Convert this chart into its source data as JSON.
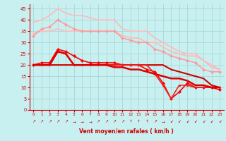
{
  "xlabel": "Vent moyen/en rafales ( km/h )",
  "bg_color": "#c8f0f0",
  "grid_color": "#a8d8d8",
  "xlim": [
    -0.5,
    23.5
  ],
  "ylim": [
    0,
    47
  ],
  "yticks": [
    0,
    5,
    10,
    15,
    20,
    25,
    30,
    35,
    40,
    45
  ],
  "xticks": [
    0,
    1,
    2,
    3,
    4,
    5,
    6,
    7,
    8,
    9,
    10,
    11,
    12,
    13,
    14,
    15,
    16,
    17,
    18,
    19,
    20,
    21,
    22,
    23
  ],
  "lines": [
    {
      "x": [
        0,
        1,
        2,
        3,
        4,
        5,
        6,
        7,
        8,
        9,
        10,
        11,
        12,
        13,
        14,
        15,
        16,
        17,
        18,
        19,
        20,
        21,
        22,
        23
      ],
      "y": [
        34,
        35,
        35,
        36,
        35,
        35,
        35,
        35,
        35,
        35,
        35,
        33,
        32,
        32,
        30,
        30,
        28,
        26,
        25,
        24,
        24,
        22,
        19,
        18
      ],
      "color": "#ffbbbb",
      "lw": 1.3,
      "marker": null
    },
    {
      "x": [
        0,
        1,
        2,
        3,
        4,
        5,
        6,
        7,
        8,
        9,
        10,
        11,
        12,
        13,
        14,
        15,
        16,
        17,
        18,
        19,
        20,
        21,
        22,
        23
      ],
      "y": [
        39,
        40,
        42,
        45,
        43,
        42,
        42,
        41,
        40,
        40,
        40,
        36,
        35,
        35,
        35,
        32,
        30,
        28,
        26,
        25,
        25,
        22,
        20,
        18
      ],
      "color": "#ffbbbb",
      "lw": 1.3,
      "marker": null
    },
    {
      "x": [
        0,
        1,
        2,
        3,
        4,
        5,
        6,
        7,
        8,
        9,
        10,
        11,
        12,
        13,
        14,
        15,
        16,
        17,
        18,
        19,
        20,
        21,
        22,
        23
      ],
      "y": [
        33,
        36,
        37,
        40,
        38,
        36,
        35,
        35,
        35,
        35,
        35,
        32,
        31,
        30,
        30,
        27,
        26,
        24,
        23,
        22,
        21,
        18,
        17,
        17
      ],
      "color": "#ff9999",
      "lw": 1.1,
      "marker": "D",
      "ms": 2.0,
      "has_marker": true
    },
    {
      "x": [
        0,
        1,
        2,
        3,
        4,
        5,
        6,
        7,
        8,
        9,
        10,
        11,
        12,
        13,
        14,
        15,
        16,
        17,
        18,
        19,
        20,
        21,
        22,
        23
      ],
      "y": [
        20,
        20,
        20,
        20,
        20,
        20,
        20,
        20,
        20,
        20,
        20,
        20,
        20,
        20,
        20,
        20,
        20,
        18,
        17,
        16,
        15,
        14,
        11,
        10
      ],
      "color": "#cc0000",
      "lw": 1.5,
      "marker": null,
      "has_marker": false
    },
    {
      "x": [
        0,
        1,
        2,
        3,
        4,
        5,
        6,
        7,
        8,
        9,
        10,
        11,
        12,
        13,
        14,
        15,
        16,
        17,
        18,
        19,
        20,
        21,
        22,
        23
      ],
      "y": [
        20,
        21,
        21,
        27,
        26,
        24,
        22,
        21,
        21,
        21,
        21,
        20,
        20,
        20,
        18,
        17,
        12,
        5,
        8,
        12,
        10,
        10,
        10,
        9
      ],
      "color": "#ff0000",
      "lw": 1.2,
      "marker": "D",
      "ms": 2.0,
      "has_marker": true
    },
    {
      "x": [
        0,
        1,
        2,
        3,
        4,
        5,
        6,
        7,
        8,
        9,
        10,
        11,
        12,
        13,
        14,
        15,
        16,
        17,
        18,
        19,
        20,
        21,
        22,
        23
      ],
      "y": [
        20,
        20,
        20,
        26,
        25,
        20,
        20,
        20,
        20,
        20,
        20,
        20,
        20,
        20,
        20,
        16,
        11,
        5,
        11,
        11,
        10,
        10,
        10,
        10
      ],
      "color": "#ee2222",
      "lw": 1.2,
      "marker": "s",
      "ms": 2.0,
      "has_marker": true
    },
    {
      "x": [
        0,
        1,
        2,
        3,
        4,
        5,
        6,
        7,
        8,
        9,
        10,
        11,
        12,
        13,
        14,
        15,
        16,
        17,
        18,
        19,
        20,
        21,
        22,
        23
      ],
      "y": [
        20,
        20,
        20,
        26,
        25,
        20,
        20,
        20,
        20,
        20,
        19,
        19,
        18,
        18,
        17,
        16,
        15,
        14,
        14,
        13,
        11,
        11,
        10,
        10
      ],
      "color": "#dd0000",
      "lw": 1.8,
      "marker": null,
      "has_marker": false
    }
  ],
  "wind_arrows": [
    "↗",
    "↗",
    "↗",
    "↗",
    "↗",
    "→",
    "→",
    "→",
    "↗",
    "↗",
    "↗",
    "↗",
    "↑",
    "↑",
    "↑",
    "↗",
    "→",
    "↙",
    "↙",
    "↙",
    "↙",
    "↙",
    "↙",
    "↙"
  ]
}
